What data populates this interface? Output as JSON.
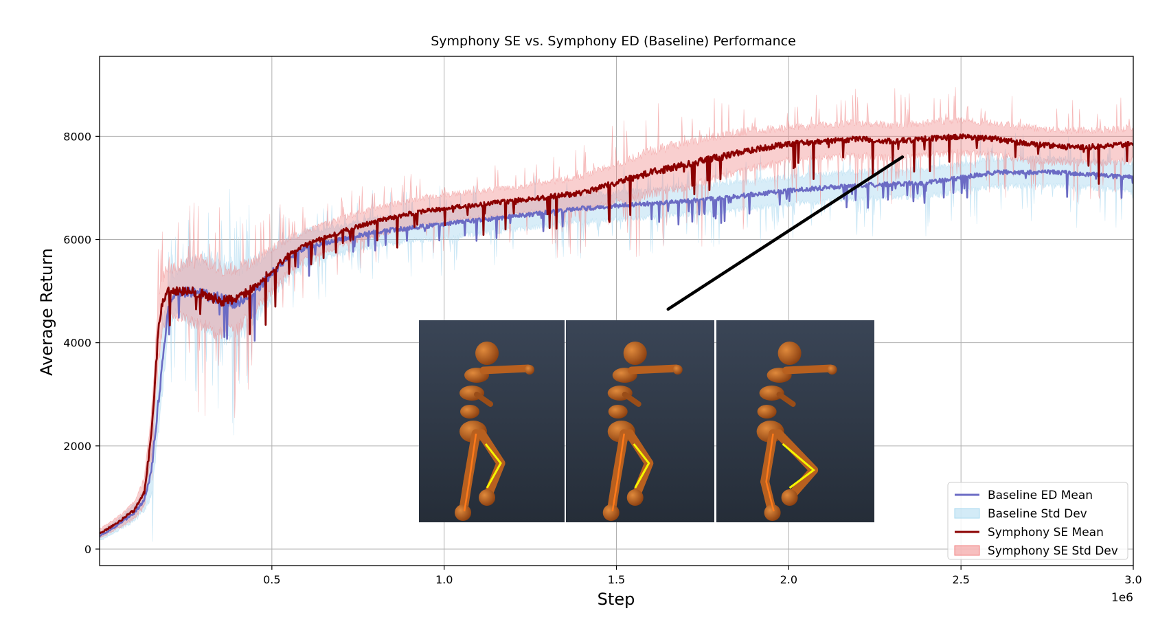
{
  "chart_data": {
    "type": "line",
    "title": "Symphony SE vs. Symphony ED (Baseline) Performance",
    "xlabel": "Step",
    "ylabel": "Average Return",
    "x_scale_label": "1e6",
    "xlim": [
      0,
      3.0
    ],
    "ylim": [
      -320,
      9550
    ],
    "x_ticks": [
      0.5,
      1.0,
      1.5,
      2.0,
      2.5,
      3.0
    ],
    "x_tick_labels": [
      "0.5",
      "1.0",
      "1.5",
      "2.0",
      "2.5",
      "3.0"
    ],
    "y_ticks": [
      0,
      2000,
      4000,
      6000,
      8000
    ],
    "y_tick_labels": [
      "0",
      "2000",
      "4000",
      "6000",
      "8000"
    ],
    "grid": true,
    "legend_position": "bottom-right",
    "legend": [
      {
        "label": "Baseline ED Mean",
        "kind": "line",
        "color": "#6b6bc4"
      },
      {
        "label": "Baseline Std Dev",
        "kind": "band",
        "color": "#a8d8ef"
      },
      {
        "label": "Symphony SE Mean",
        "kind": "line",
        "color": "#8b0000"
      },
      {
        "label": "Symphony SE Std Dev",
        "kind": "band",
        "color": "#f08080"
      }
    ],
    "series": [
      {
        "name": "Baseline ED Mean",
        "color": "#6b6bc4",
        "std_color": "#a8d8ef",
        "x": [
          0.0,
          0.05,
          0.1,
          0.13,
          0.15,
          0.17,
          0.19,
          0.2,
          0.22,
          0.25,
          0.3,
          0.35,
          0.4,
          0.45,
          0.5,
          0.55,
          0.6,
          0.7,
          0.8,
          1.0,
          1.2,
          1.4,
          1.6,
          1.8,
          2.0,
          2.2,
          2.4,
          2.5,
          2.6,
          2.7,
          2.8,
          2.9,
          3.0
        ],
        "mean": [
          250,
          450,
          700,
          950,
          1500,
          2800,
          4100,
          4700,
          4950,
          5000,
          4950,
          4850,
          4750,
          5000,
          5350,
          5650,
          5850,
          6000,
          6150,
          6300,
          6450,
          6600,
          6700,
          6800,
          6950,
          7050,
          7100,
          7200,
          7300,
          7300,
          7300,
          7250,
          7200
        ],
        "std": [
          80,
          100,
          150,
          200,
          400,
          600,
          500,
          400,
          350,
          500,
          650,
          700,
          650,
          550,
          450,
          350,
          300,
          250,
          250,
          250,
          250,
          250,
          250,
          250,
          250,
          250,
          250,
          250,
          250,
          250,
          250,
          250,
          250
        ]
      },
      {
        "name": "Symphony SE Mean",
        "color": "#8b0000",
        "std_color": "#f08080",
        "x": [
          0.0,
          0.05,
          0.1,
          0.13,
          0.15,
          0.16,
          0.17,
          0.18,
          0.19,
          0.2,
          0.25,
          0.3,
          0.35,
          0.4,
          0.45,
          0.5,
          0.55,
          0.6,
          0.7,
          0.8,
          0.9,
          1.0,
          1.2,
          1.4,
          1.5,
          1.6,
          1.7,
          1.8,
          1.9,
          2.0,
          2.1,
          2.2,
          2.3,
          2.4,
          2.5,
          2.6,
          2.7,
          2.8,
          2.9,
          3.0
        ],
        "mean": [
          300,
          500,
          750,
          1100,
          2200,
          3100,
          4200,
          4700,
          4900,
          5000,
          5000,
          4950,
          4800,
          4850,
          5100,
          5400,
          5700,
          5900,
          6150,
          6350,
          6500,
          6600,
          6750,
          6900,
          7100,
          7300,
          7450,
          7600,
          7750,
          7850,
          7900,
          7950,
          7900,
          7950,
          8000,
          7950,
          7850,
          7800,
          7800,
          7850
        ],
        "std": [
          80,
          100,
          150,
          250,
          350,
          500,
          600,
          500,
          450,
          400,
          500,
          600,
          600,
          550,
          450,
          400,
          300,
          250,
          250,
          250,
          250,
          250,
          250,
          300,
          350,
          400,
          400,
          400,
          350,
          300,
          300,
          300,
          300,
          300,
          300,
          300,
          300,
          300,
          300,
          300
        ]
      }
    ],
    "inset": {
      "description": "three-frame humanoid agent",
      "pointer_to": {
        "x": 2.33,
        "y": 7600
      },
      "pointer_from": {
        "x": 1.65,
        "y": 4650
      },
      "background_color": "#2f3a48",
      "body_color": "#b8601f",
      "frame_count": 3
    }
  }
}
